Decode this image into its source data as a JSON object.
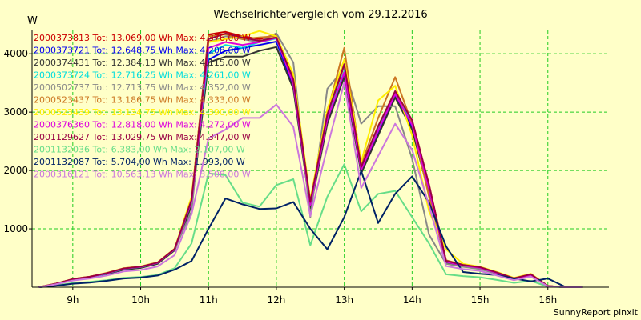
{
  "chart_data": {
    "type": "line",
    "title": "Wechselrichtervergleich vom 29.12.2016",
    "ylabel": "W",
    "xlabel": "",
    "credit": "SunnyReport pinxit",
    "ylim": [
      0,
      4400
    ],
    "xlim": [
      8.4,
      16.9
    ],
    "yticks": [
      1000,
      2000,
      3000,
      4000
    ],
    "xticks": [
      {
        "v": 9,
        "label": "9h"
      },
      {
        "v": 10,
        "label": "10h"
      },
      {
        "v": 11,
        "label": "11h"
      },
      {
        "v": 12,
        "label": "12h"
      },
      {
        "v": 13,
        "label": "13h"
      },
      {
        "v": 14,
        "label": "14h"
      },
      {
        "v": 15,
        "label": "15h"
      },
      {
        "v": 16,
        "label": "16h"
      }
    ],
    "grid": true,
    "legend_placement": "top-left",
    "x": [
      8.5,
      8.75,
      9.0,
      9.25,
      9.5,
      9.75,
      10.0,
      10.25,
      10.5,
      10.75,
      11.0,
      11.25,
      11.5,
      11.75,
      12.0,
      12.25,
      12.5,
      12.75,
      13.0,
      13.25,
      13.5,
      13.75,
      14.0,
      14.25,
      14.5,
      14.75,
      15.0,
      15.25,
      15.5,
      15.75,
      16.0,
      16.25,
      16.5
    ],
    "series": [
      {
        "name": "2000373813 Tot: 13.069,00 Wh Max: 4.376,00 W",
        "color": "#cc0000",
        "values": [
          0,
          60,
          140,
          180,
          240,
          320,
          350,
          420,
          650,
          1500,
          4330,
          4376,
          4300,
          4250,
          4330,
          3550,
          1450,
          2950,
          3800,
          2050,
          2750,
          3350,
          2850,
          1750,
          450,
          380,
          340,
          250,
          150,
          220,
          20,
          0,
          0
        ]
      },
      {
        "name": "2000373721 Tot: 12.648,75 Wh Max: 4.208,00 W",
        "color": "#0000ee",
        "values": [
          0,
          55,
          130,
          170,
          230,
          310,
          340,
          410,
          640,
          1450,
          3900,
          4050,
          4100,
          4150,
          4208,
          3450,
          1400,
          2850,
          3650,
          2000,
          2650,
          3300,
          2750,
          1650,
          430,
          370,
          330,
          240,
          140,
          210,
          20,
          0,
          0
        ]
      },
      {
        "name": "2000374431 Tot: 12.384,13 Wh Max: 4.115,00 W",
        "color": "#333333",
        "values": [
          0,
          55,
          125,
          165,
          225,
          300,
          330,
          400,
          630,
          1400,
          3850,
          3950,
          3950,
          4050,
          4115,
          3400,
          1350,
          2800,
          3600,
          1950,
          2600,
          3250,
          2700,
          1600,
          420,
          360,
          320,
          230,
          130,
          200,
          20,
          0,
          0
        ]
      },
      {
        "name": "2000373724 Tot: 12.716,25 Wh Max: 4.261,00 W",
        "color": "#00dddd",
        "values": [
          0,
          58,
          130,
          170,
          235,
          315,
          345,
          415,
          645,
          1480,
          4000,
          4150,
          4100,
          4200,
          4261,
          3500,
          1420,
          2900,
          3700,
          2020,
          2700,
          3320,
          2800,
          1700,
          440,
          375,
          335,
          245,
          145,
          215,
          20,
          0,
          0
        ]
      },
      {
        "name": "2000502737 Tot: 12.713,75 Wh Max: 4.352,00 W",
        "color": "#888888",
        "values": [
          0,
          60,
          135,
          175,
          240,
          320,
          350,
          420,
          650,
          1300,
          4200,
          4300,
          4250,
          4200,
          4352,
          3850,
          1200,
          3400,
          3750,
          2800,
          3100,
          3100,
          2200,
          900,
          400,
          350,
          310,
          230,
          130,
          190,
          20,
          0,
          0
        ]
      },
      {
        "name": "2000523437 Tot: 13.186,75 Wh Max: 4.333,00 W",
        "color": "#cc7722",
        "values": [
          0,
          60,
          140,
          180,
          245,
          325,
          355,
          425,
          660,
          1520,
          4300,
          4333,
          4250,
          4280,
          4300,
          3600,
          1480,
          3000,
          4100,
          2100,
          2900,
          3600,
          2800,
          1550,
          460,
          385,
          345,
          255,
          155,
          225,
          20,
          0,
          0
        ]
      },
      {
        "name": "2000523439 Tot: 13.134,75 Wh Max: 4.390,00 W",
        "color": "#ffee00",
        "values": [
          0,
          60,
          140,
          180,
          245,
          325,
          355,
          425,
          660,
          1550,
          4200,
          4250,
          4300,
          4390,
          4300,
          3650,
          1500,
          3050,
          3900,
          2150,
          3200,
          3450,
          2600,
          1300,
          650,
          400,
          350,
          260,
          160,
          230,
          20,
          0,
          0
        ]
      },
      {
        "name": "2000376360 Tot: 12.818,00 Wh Max: 4.272,00 W",
        "color": "#dd00dd",
        "values": [
          0,
          58,
          135,
          175,
          238,
          318,
          348,
          418,
          648,
          1470,
          4100,
          4200,
          4150,
          4200,
          4272,
          3480,
          1410,
          2880,
          3680,
          2010,
          2680,
          3310,
          2780,
          1680,
          435,
          372,
          332,
          242,
          142,
          212,
          20,
          0,
          0
        ]
      },
      {
        "name": "2001129627 Tot: 13.029,75 Wh Max: 4.347,00 W",
        "color": "#990044",
        "values": [
          0,
          60,
          140,
          180,
          242,
          322,
          352,
          422,
          655,
          1500,
          4250,
          4347,
          4280,
          4220,
          4280,
          3560,
          1460,
          2960,
          3820,
          2060,
          2760,
          3360,
          2860,
          1760,
          452,
          382,
          342,
          252,
          152,
          222,
          20,
          0,
          0
        ]
      },
      {
        "name": "2001132036 Tot: 6.383,00 Wh Max: 2.107,00 W",
        "color": "#66dd88",
        "values": [
          0,
          30,
          70,
          90,
          120,
          160,
          175,
          210,
          325,
          750,
          1950,
          1920,
          1450,
          1380,
          1750,
          1850,
          720,
          1550,
          2107,
          1300,
          1600,
          1650,
          1200,
          750,
          220,
          190,
          170,
          125,
          75,
          110,
          10,
          0,
          0
        ]
      },
      {
        "name": "2001132087 Tot: 5.704,00 Wh Max: 1.993,00 W",
        "color": "#002266",
        "values": [
          0,
          25,
          60,
          80,
          110,
          150,
          165,
          200,
          300,
          450,
          1000,
          1520,
          1420,
          1340,
          1350,
          1460,
          1000,
          650,
          1200,
          1993,
          1100,
          1600,
          1900,
          1450,
          700,
          260,
          230,
          210,
          150,
          100,
          150,
          10,
          0
        ]
      },
      {
        "name": "2000316121 Tot: 10.563,13 Wh Max: 3.508,00 W",
        "color": "#cc77dd",
        "values": [
          0,
          50,
          115,
          150,
          200,
          270,
          295,
          355,
          550,
          1250,
          2550,
          2700,
          2900,
          2900,
          3130,
          2750,
          1220,
          2400,
          3508,
          1700,
          2250,
          2800,
          2350,
          1400,
          360,
          310,
          280,
          200,
          120,
          180,
          15,
          0,
          0
        ]
      }
    ]
  }
}
